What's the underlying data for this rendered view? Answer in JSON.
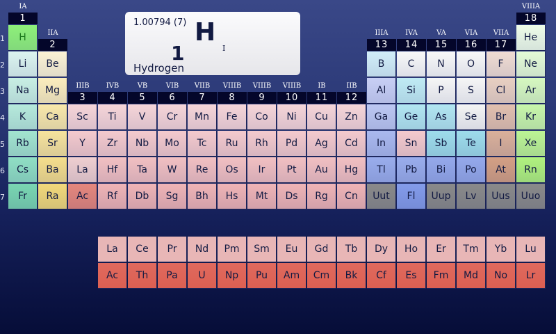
{
  "selected": {
    "symbol": "H",
    "atomic_number": "1",
    "atomic_mass": "1.00794 (7)",
    "name": "Hydrogen",
    "state": "I"
  },
  "periods": [
    "1",
    "2",
    "3",
    "4",
    "5",
    "6",
    "7"
  ],
  "groups": [
    {
      "num": "1",
      "label": "IA"
    },
    {
      "num": "2",
      "label": "IIA"
    },
    {
      "num": "3",
      "label": "IIIB"
    },
    {
      "num": "4",
      "label": "IVB"
    },
    {
      "num": "5",
      "label": "VB"
    },
    {
      "num": "6",
      "label": "VIB"
    },
    {
      "num": "7",
      "label": "VIIB"
    },
    {
      "num": "8",
      "label": "VIIIB"
    },
    {
      "num": "9",
      "label": "VIIIB"
    },
    {
      "num": "10",
      "label": "VIIIB"
    },
    {
      "num": "11",
      "label": "IB"
    },
    {
      "num": "12",
      "label": "IIB"
    },
    {
      "num": "13",
      "label": "IIIA"
    },
    {
      "num": "14",
      "label": "IVA"
    },
    {
      "num": "15",
      "label": "VA"
    },
    {
      "num": "16",
      "label": "VIA"
    },
    {
      "num": "17",
      "label": "VIIA"
    },
    {
      "num": "18",
      "label": "VIIIA"
    }
  ],
  "table": [
    [
      "H",
      null,
      null,
      null,
      null,
      null,
      null,
      null,
      null,
      null,
      null,
      null,
      null,
      null,
      null,
      null,
      null,
      "He"
    ],
    [
      "Li",
      "Be",
      null,
      null,
      null,
      null,
      null,
      null,
      null,
      null,
      null,
      null,
      "B",
      "C",
      "N",
      "O",
      "F",
      "Ne"
    ],
    [
      "Na",
      "Mg",
      null,
      null,
      null,
      null,
      null,
      null,
      null,
      null,
      null,
      null,
      "Al",
      "Si",
      "P",
      "S",
      "Cl",
      "Ar"
    ],
    [
      "K",
      "Ca",
      "Sc",
      "Ti",
      "V",
      "Cr",
      "Mn",
      "Fe",
      "Co",
      "Ni",
      "Cu",
      "Zn",
      "Ga",
      "Ge",
      "As",
      "Se",
      "Br",
      "Kr"
    ],
    [
      "Rb",
      "Sr",
      "Y",
      "Zr",
      "Nb",
      "Mo",
      "Tc",
      "Ru",
      "Rh",
      "Pd",
      "Ag",
      "Cd",
      "In",
      "Sn",
      "Sb",
      "Te",
      "I",
      "Xe"
    ],
    [
      "Cs",
      "Ba",
      "La",
      "Hf",
      "Ta",
      "W",
      "Re",
      "Os",
      "Ir",
      "Pt",
      "Au",
      "Hg",
      "Tl",
      "Pb",
      "Bi",
      "Po",
      "At",
      "Rn"
    ],
    [
      "Fr",
      "Ra",
      "Ac",
      "Rf",
      "Db",
      "Sg",
      "Bh",
      "Hs",
      "Mt",
      "Ds",
      "Rg",
      "Cn",
      "Uut",
      "Fl",
      "Uup",
      "Lv",
      "Uus",
      "Uuo"
    ]
  ],
  "lanthanides": [
    "La",
    "Ce",
    "Pr",
    "Nd",
    "Pm",
    "Sm",
    "Eu",
    "Gd",
    "Tb",
    "Dy",
    "Ho",
    "Er",
    "Tm",
    "Yb",
    "Lu"
  ],
  "actinides": [
    "Ac",
    "Th",
    "Pa",
    "U",
    "Np",
    "Pu",
    "Am",
    "Cm",
    "Bk",
    "Cf",
    "Es",
    "Fm",
    "Md",
    "No",
    "Lr"
  ],
  "colors": {
    "H": "#8ef07a",
    "La": "#efcfd0",
    "Ac": "#e5877d",
    "Li": "#dcf4ef",
    "Na": "#c8efe3",
    "K": "#b6eadb",
    "Rb": "#a2e4cf",
    "Cs": "#90dfc4",
    "Fr": "#7ad6b2",
    "Be": "#fcf3d4",
    "Mg": "#fbedbd",
    "Ca": "#f9e8aa",
    "Sr": "#f7e39c",
    "Ba": "#f5de8c",
    "Ra": "#f2d97a",
    "B": "#d2eef8",
    "Al": "#c8cff5",
    "Ga": "#bcc7f2",
    "In": "#aab9ef",
    "Tl": "#9aadec",
    "Pb": "#9aadec",
    "Bi": "#95a9eb",
    "Po": "#95a9eb",
    "Fl": "#849cea",
    "Si": "#c0ebf4",
    "Ge": "#b2e6f1",
    "As": "#b2e6f1",
    "Sb": "#9edceb",
    "Te": "#9edceb",
    "C": "#f8f8f8",
    "N": "#f8f8f8",
    "O": "#f8f8f8",
    "P": "#f6f6f6",
    "S": "#f6f6f6",
    "Se": "#f4f4f4",
    "F": "#f0dcd2",
    "Cl": "#e9d0c2",
    "Br": "#e2c0ae",
    "I": "#dab09a",
    "At": "#d4a084",
    "He": "#eefce8",
    "Ne": "#e4fbd6",
    "Ar": "#d6f8c0",
    "Kr": "#c8f6aa",
    "Xe": "#bcf494",
    "Rn": "#b0f27e",
    "Uut": "#8a8a8a",
    "Uup": "#8a8a8a",
    "Lv": "#8a8a8a",
    "Uus": "#8a8a8a",
    "Uuo": "#8a8a8a",
    "transition": [
      "#f6d5d8",
      "#f6d5d8",
      "#f4cacd",
      "#f2c0c2",
      "#efb4b6"
    ],
    "lanthanide_row": "#e8b6b6",
    "actinide_row": "#dc5f52",
    "h_text": "#1e7a1e"
  }
}
